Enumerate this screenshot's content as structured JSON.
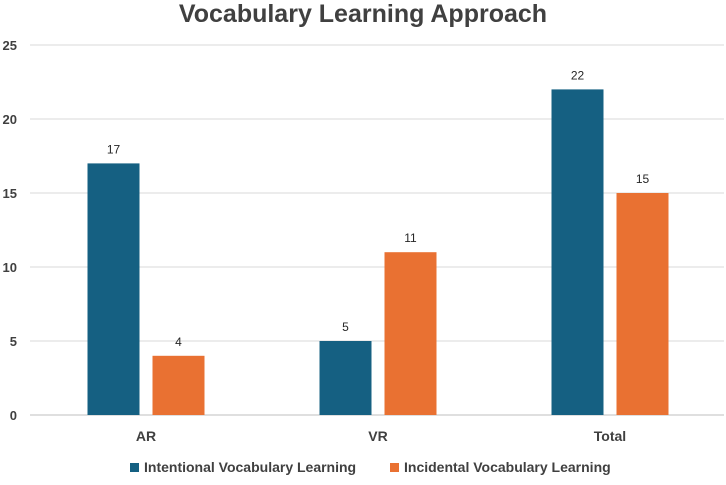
{
  "chart_data": {
    "type": "bar",
    "title": "Vocabulary Learning Approach",
    "xlabel": "",
    "ylabel": "",
    "categories": [
      "AR",
      "VR",
      "Total"
    ],
    "series": [
      {
        "name": "Intentional Vocabulary Learning",
        "values": [
          17,
          5,
          22
        ],
        "color": "#156082"
      },
      {
        "name": "Incidental Vocabulary Learning",
        "values": [
          4,
          11,
          15
        ],
        "color": "#E97132"
      }
    ],
    "ylim": [
      0,
      25
    ],
    "yticks": [
      0,
      5,
      10,
      15,
      20,
      25
    ],
    "grid": true,
    "legend_position": "bottom",
    "data_labels": true
  }
}
